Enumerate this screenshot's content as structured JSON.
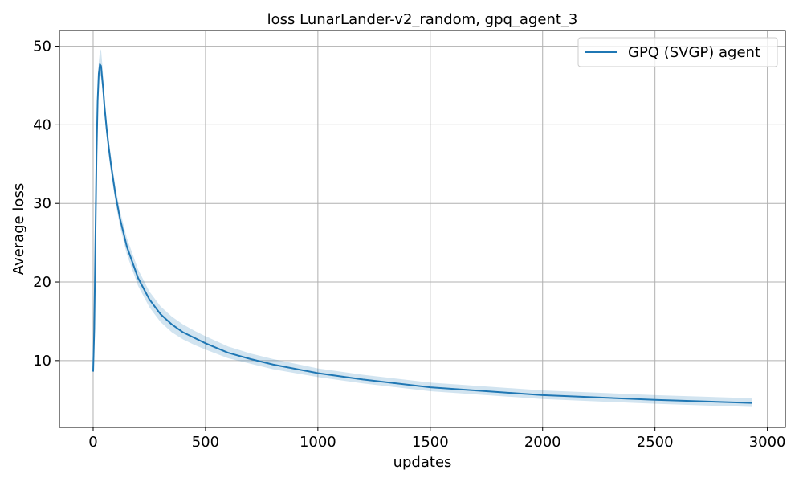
{
  "chart_data": {
    "type": "line",
    "title": "loss LunarLander-v2_random, gpq_agent_3",
    "xlabel": "updates",
    "ylabel": "Average loss",
    "xlim": [
      -150,
      3080
    ],
    "ylim": [
      1.5,
      52.0
    ],
    "xticks": [
      0,
      500,
      1000,
      1500,
      2000,
      2500,
      3000
    ],
    "yticks": [
      10,
      20,
      30,
      40,
      50
    ],
    "xtick_labels": [
      "0",
      "500",
      "1000",
      "1500",
      "2000",
      "2500",
      "3000"
    ],
    "ytick_labels": [
      "10",
      "20",
      "30",
      "40",
      "50"
    ],
    "grid": true,
    "legend_position": "top-right",
    "series": [
      {
        "name": "GPQ (SVGP) agent",
        "color": "#1f77b4",
        "band_color": "#1f77b4",
        "x": [
          0,
          5,
          10,
          15,
          20,
          25,
          30,
          35,
          40,
          45,
          50,
          60,
          70,
          80,
          100,
          120,
          150,
          200,
          250,
          300,
          350,
          400,
          450,
          500,
          600,
          700,
          800,
          1000,
          1200,
          1500,
          2000,
          2500,
          2930
        ],
        "y": [
          8.6,
          14.0,
          25.0,
          36.0,
          43.0,
          46.5,
          47.7,
          47.5,
          46.0,
          44.5,
          42.5,
          39.5,
          37.0,
          34.8,
          31.0,
          28.0,
          24.5,
          20.5,
          17.8,
          15.9,
          14.6,
          13.6,
          12.9,
          12.2,
          11.0,
          10.2,
          9.5,
          8.4,
          7.6,
          6.6,
          5.6,
          5.0,
          4.6
        ],
        "lower": [
          8.5,
          13.5,
          24.0,
          35.0,
          42.0,
          45.5,
          46.5,
          46.0,
          44.8,
          43.2,
          41.4,
          38.5,
          36.0,
          33.8,
          30.0,
          27.0,
          23.5,
          19.5,
          16.8,
          14.9,
          13.6,
          12.7,
          12.0,
          11.4,
          10.3,
          9.6,
          8.9,
          7.9,
          7.1,
          6.1,
          5.1,
          4.5,
          4.1
        ],
        "upper": [
          8.7,
          14.5,
          26.0,
          37.0,
          44.5,
          48.0,
          49.3,
          49.6,
          48.0,
          46.0,
          43.8,
          40.6,
          38.0,
          35.8,
          32.0,
          29.0,
          25.6,
          21.6,
          18.8,
          16.9,
          15.6,
          14.6,
          13.8,
          13.1,
          11.8,
          10.9,
          10.2,
          9.0,
          8.2,
          7.2,
          6.2,
          5.6,
          5.2
        ]
      }
    ]
  }
}
